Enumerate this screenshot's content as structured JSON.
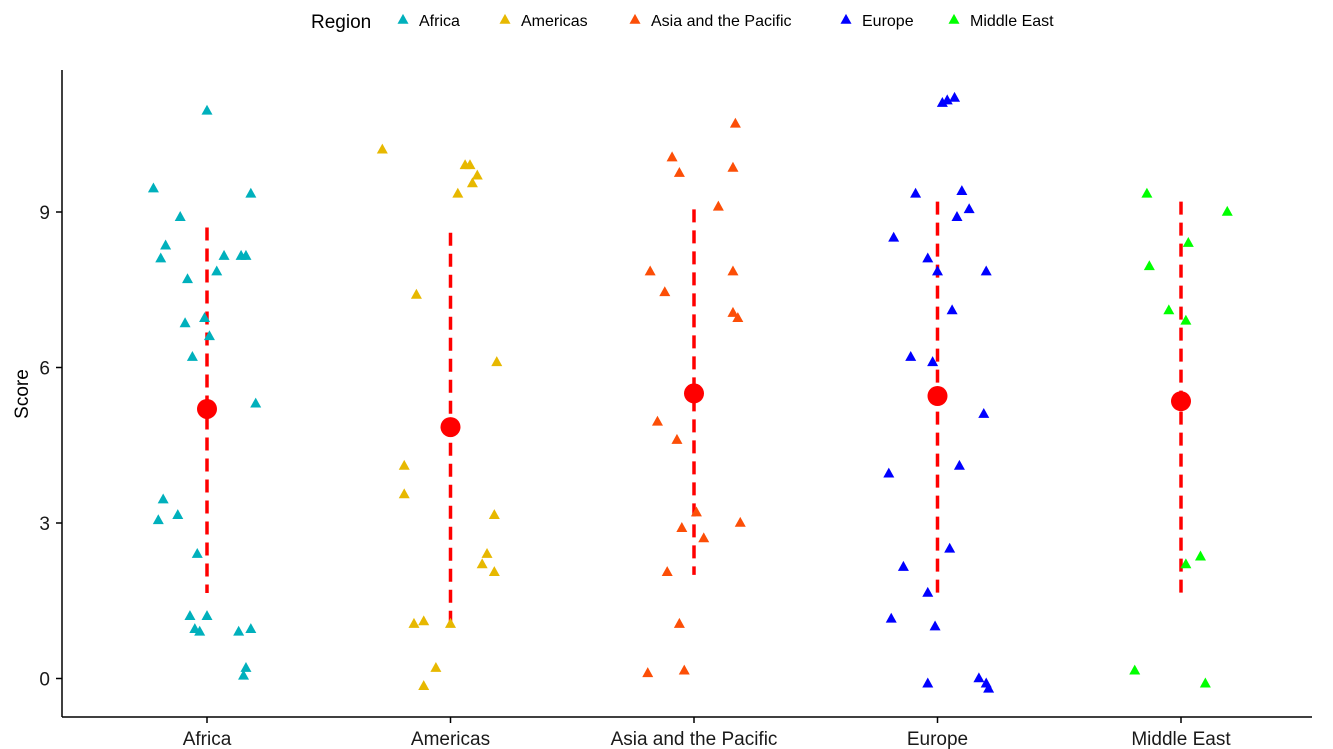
{
  "chart_data": {
    "type": "scatter",
    "xlabel": "",
    "ylabel": "Score",
    "ylim": [
      -0.9,
      11.6
    ],
    "yticks": [
      0,
      3,
      6,
      9
    ],
    "categories": [
      "Africa",
      "Americas",
      "Asia and the Pacific",
      "Europe",
      "Middle East"
    ],
    "legend": {
      "title": "Region",
      "position": "top"
    },
    "grid": false,
    "series": [
      {
        "name": "Africa",
        "color": "#00B0BC",
        "marker": "triangle",
        "points": [
          {
            "x": 0.0,
            "y": 10.95
          },
          {
            "x": -0.22,
            "y": 9.45
          },
          {
            "x": -0.11,
            "y": 8.9
          },
          {
            "x": -0.17,
            "y": 8.35
          },
          {
            "x": -0.19,
            "y": 8.1
          },
          {
            "x": -0.08,
            "y": 7.7
          },
          {
            "x": 0.04,
            "y": 7.85
          },
          {
            "x": 0.07,
            "y": 8.15
          },
          {
            "x": 0.14,
            "y": 8.15
          },
          {
            "x": 0.16,
            "y": 8.15
          },
          {
            "x": 0.18,
            "y": 9.35
          },
          {
            "x": -0.09,
            "y": 6.85
          },
          {
            "x": -0.06,
            "y": 6.2
          },
          {
            "x": -0.01,
            "y": 6.95
          },
          {
            "x": 0.01,
            "y": 6.6
          },
          {
            "x": 0.2,
            "y": 5.3
          },
          {
            "x": -0.18,
            "y": 3.45
          },
          {
            "x": -0.2,
            "y": 3.05
          },
          {
            "x": -0.12,
            "y": 3.15
          },
          {
            "x": -0.04,
            "y": 2.4
          },
          {
            "x": -0.07,
            "y": 1.2
          },
          {
            "x": -0.05,
            "y": 0.95
          },
          {
            "x": -0.03,
            "y": 0.9
          },
          {
            "x": 0.0,
            "y": 1.2
          },
          {
            "x": 0.13,
            "y": 0.9
          },
          {
            "x": 0.18,
            "y": 0.95
          },
          {
            "x": 0.16,
            "y": 0.2
          },
          {
            "x": 0.15,
            "y": 0.05
          }
        ]
      },
      {
        "name": "Americas",
        "color": "#E7B800",
        "marker": "triangle",
        "points": [
          {
            "x": -0.28,
            "y": 10.2
          },
          {
            "x": 0.06,
            "y": 9.9
          },
          {
            "x": 0.08,
            "y": 9.9
          },
          {
            "x": 0.09,
            "y": 9.55
          },
          {
            "x": 0.11,
            "y": 9.7
          },
          {
            "x": 0.03,
            "y": 9.35
          },
          {
            "x": -0.14,
            "y": 7.4
          },
          {
            "x": 0.19,
            "y": 6.1
          },
          {
            "x": -0.19,
            "y": 4.1
          },
          {
            "x": -0.19,
            "y": 3.55
          },
          {
            "x": 0.18,
            "y": 3.15
          },
          {
            "x": 0.15,
            "y": 2.4
          },
          {
            "x": 0.13,
            "y": 2.2
          },
          {
            "x": 0.18,
            "y": 2.05
          },
          {
            "x": -0.15,
            "y": 1.05
          },
          {
            "x": -0.11,
            "y": 1.1
          },
          {
            "x": 0.0,
            "y": 1.05
          },
          {
            "x": -0.06,
            "y": 0.2
          },
          {
            "x": -0.11,
            "y": -0.15
          }
        ]
      },
      {
        "name": "Asia and the Pacific",
        "color": "#FC4E07",
        "marker": "triangle",
        "points": [
          {
            "x": 0.17,
            "y": 10.7
          },
          {
            "x": -0.09,
            "y": 10.05
          },
          {
            "x": -0.06,
            "y": 9.75
          },
          {
            "x": 0.16,
            "y": 9.85
          },
          {
            "x": 0.1,
            "y": 9.1
          },
          {
            "x": -0.18,
            "y": 7.85
          },
          {
            "x": -0.12,
            "y": 7.45
          },
          {
            "x": 0.16,
            "y": 7.85
          },
          {
            "x": 0.16,
            "y": 7.05
          },
          {
            "x": 0.18,
            "y": 6.95
          },
          {
            "x": -0.15,
            "y": 4.95
          },
          {
            "x": -0.07,
            "y": 4.6
          },
          {
            "x": 0.01,
            "y": 3.2
          },
          {
            "x": -0.05,
            "y": 2.9
          },
          {
            "x": 0.04,
            "y": 2.7
          },
          {
            "x": 0.19,
            "y": 3.0
          },
          {
            "x": -0.11,
            "y": 2.05
          },
          {
            "x": -0.06,
            "y": 1.05
          },
          {
            "x": -0.19,
            "y": 0.1
          },
          {
            "x": -0.04,
            "y": 0.15
          }
        ]
      },
      {
        "name": "Europe",
        "color": "#0000FF",
        "marker": "triangle",
        "points": [
          {
            "x": 0.02,
            "y": 11.1
          },
          {
            "x": 0.04,
            "y": 11.15
          },
          {
            "x": 0.07,
            "y": 11.2
          },
          {
            "x": 0.1,
            "y": 9.4
          },
          {
            "x": 0.13,
            "y": 9.05
          },
          {
            "x": 0.08,
            "y": 8.9
          },
          {
            "x": -0.09,
            "y": 9.35
          },
          {
            "x": -0.18,
            "y": 8.5
          },
          {
            "x": -0.04,
            "y": 8.1
          },
          {
            "x": 0.0,
            "y": 7.85
          },
          {
            "x": 0.2,
            "y": 7.85
          },
          {
            "x": 0.06,
            "y": 7.1
          },
          {
            "x": -0.11,
            "y": 6.2
          },
          {
            "x": -0.02,
            "y": 6.1
          },
          {
            "x": 0.19,
            "y": 5.1
          },
          {
            "x": 0.09,
            "y": 4.1
          },
          {
            "x": -0.2,
            "y": 3.95
          },
          {
            "x": 0.05,
            "y": 2.5
          },
          {
            "x": -0.14,
            "y": 2.15
          },
          {
            "x": -0.04,
            "y": 1.65
          },
          {
            "x": -0.19,
            "y": 1.15
          },
          {
            "x": -0.01,
            "y": 1.0
          },
          {
            "x": -0.04,
            "y": -0.1
          },
          {
            "x": 0.17,
            "y": 0.0
          },
          {
            "x": 0.2,
            "y": -0.1
          },
          {
            "x": 0.21,
            "y": -0.2
          }
        ]
      },
      {
        "name": "Middle East",
        "color": "#00FF00",
        "marker": "triangle",
        "points": [
          {
            "x": -0.14,
            "y": 9.35
          },
          {
            "x": 0.19,
            "y": 9.0
          },
          {
            "x": 0.03,
            "y": 8.4
          },
          {
            "x": -0.13,
            "y": 7.95
          },
          {
            "x": -0.05,
            "y": 7.1
          },
          {
            "x": 0.02,
            "y": 6.9
          },
          {
            "x": 0.08,
            "y": 2.35
          },
          {
            "x": 0.02,
            "y": 2.2
          },
          {
            "x": -0.19,
            "y": 0.15
          },
          {
            "x": 0.1,
            "y": -0.1
          }
        ]
      }
    ],
    "summary": {
      "color": "#FF0000",
      "points": [
        {
          "category": "Africa",
          "mean": 5.2,
          "low": 1.65,
          "high": 8.7
        },
        {
          "category": "Americas",
          "mean": 4.85,
          "low": 1.05,
          "high": 8.6
        },
        {
          "category": "Asia and the Pacific",
          "mean": 5.5,
          "low": 2.0,
          "high": 9.05
        },
        {
          "category": "Europe",
          "mean": 5.45,
          "low": 1.6,
          "high": 9.2
        },
        {
          "category": "Middle East",
          "mean": 5.35,
          "low": 1.55,
          "high": 9.2
        }
      ]
    }
  }
}
